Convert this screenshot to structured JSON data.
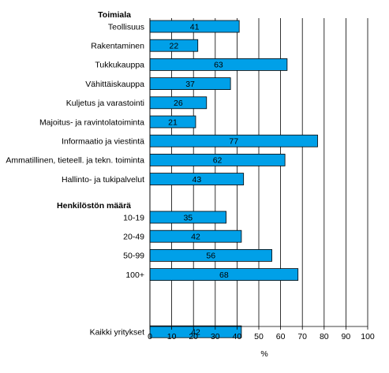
{
  "chart_data": {
    "type": "bar",
    "orientation": "horizontal",
    "grid": true,
    "bar_color": "#00a0e8",
    "xlabel": "%",
    "xlim": [
      0,
      100
    ],
    "xticks": [
      "0",
      "10",
      "20",
      "30",
      "40",
      "50",
      "60",
      "70",
      "80",
      "90",
      "100"
    ],
    "groups": [
      {
        "header": "Toimiala",
        "items": [
          {
            "label": "Teollisuus",
            "value": 41
          },
          {
            "label": "Rakentaminen",
            "value": 22
          },
          {
            "label": "Tukkukauppa",
            "value": 63
          },
          {
            "label": "Vähittäiskauppa",
            "value": 37
          },
          {
            "label": "Kuljetus ja varastointi",
            "value": 26
          },
          {
            "label": "Majoitus- ja ravintolatoiminta",
            "value": 21
          },
          {
            "label": "Informaatio ja viestintä",
            "value": 77
          },
          {
            "label": "Ammatillinen, tieteell. ja tekn. toiminta",
            "value": 62
          },
          {
            "label": "Hallinto- ja tukipalvelut",
            "value": 43
          }
        ]
      },
      {
        "header": "Henkilöstön määrä",
        "items": [
          {
            "label": "10-19",
            "value": 35
          },
          {
            "label": "20-49",
            "value": 42
          },
          {
            "label": "50-99",
            "value": 56
          },
          {
            "label": "100+",
            "value": 68
          }
        ]
      },
      {
        "header": "",
        "items": [
          {
            "label": "Kaikki yritykset",
            "value": 42
          }
        ]
      }
    ]
  }
}
